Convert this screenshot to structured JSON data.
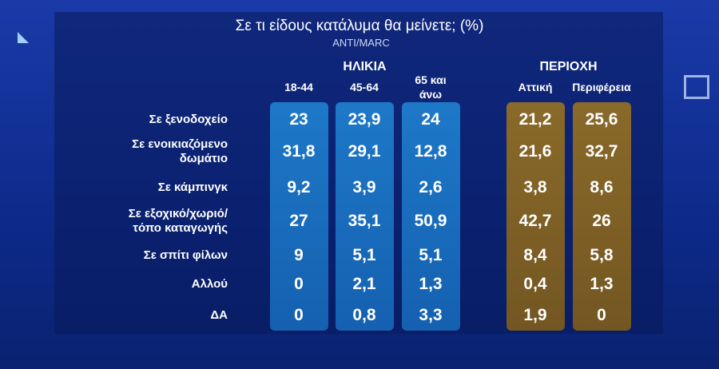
{
  "title": "Σε τι είδους κατάλυμα θα μείνετε; (%)",
  "source": "ANTI/MARC",
  "groups": [
    {
      "label": "ΗΛΙΚΙΑ",
      "columns": [
        {
          "lines": [
            "18-44"
          ]
        },
        {
          "lines": [
            "45-64"
          ]
        },
        {
          "lines": [
            "65 και",
            "άνω"
          ]
        }
      ]
    },
    {
      "label": "ΠΕΡΙΟΧΗ",
      "columns": [
        {
          "lines": [
            "Αττική"
          ]
        },
        {
          "lines": [
            "Περιφέρεια"
          ]
        }
      ]
    }
  ],
  "rows": [
    {
      "lines": [
        "Σε ξενοδοχείο"
      ],
      "values": [
        "23",
        "23,9",
        "24",
        "21,2",
        "25,6"
      ]
    },
    {
      "lines": [
        "Σε ενοικιαζόμενο",
        "δωμάτιο"
      ],
      "values": [
        "31,8",
        "29,1",
        "12,8",
        "21,6",
        "32,7"
      ]
    },
    {
      "lines": [
        "Σε κάμπινγκ"
      ],
      "values": [
        "9,2",
        "3,9",
        "2,6",
        "3,8",
        "8,6"
      ]
    },
    {
      "lines": [
        "Σε εξοχικό/χωριό/",
        "τόπο καταγωγής"
      ],
      "values": [
        "27",
        "35,1",
        "50,9",
        "42,7",
        "26"
      ]
    },
    {
      "lines": [
        "Σε σπίτι φίλων"
      ],
      "values": [
        "9",
        "5,1",
        "5,1",
        "8,4",
        "5,8"
      ]
    },
    {
      "lines": [
        "Αλλού"
      ],
      "values": [
        "0",
        "2,1",
        "1,3",
        "0,4",
        "1,3"
      ]
    },
    {
      "lines": [
        "ΔΑ"
      ],
      "values": [
        "0",
        "0,8",
        "3,3",
        "1,9",
        "0"
      ]
    }
  ]
}
